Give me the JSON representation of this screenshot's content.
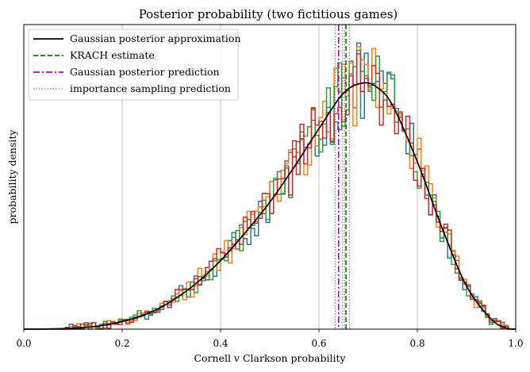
{
  "chart_data": {
    "type": "line",
    "title": "Posterior probability (two fictitious games)",
    "xlabel": "Cornell v Clarkson probability",
    "ylabel": "probability density",
    "xlim": [
      0.0,
      1.0
    ],
    "xticks": [
      "0.0",
      "0.2",
      "0.4",
      "0.6",
      "0.8",
      "1.0"
    ],
    "grid": "vertical",
    "legend_position": "top-left",
    "legend": [
      {
        "label": "Gaussian posterior approximation",
        "style": "solid",
        "color": "#000000"
      },
      {
        "label": "KRACH estimate",
        "style": "dashed",
        "color": "#008000"
      },
      {
        "label": "Gaussian posterior prediction",
        "style": "dashdot",
        "color": "#bf00bf"
      },
      {
        "label": "importance sampling prediction",
        "style": "dotted",
        "color": "#808080"
      }
    ],
    "gaussian_posterior_curve": {
      "x": [
        0.0,
        0.05,
        0.1,
        0.15,
        0.2,
        0.25,
        0.3,
        0.35,
        0.4,
        0.45,
        0.5,
        0.55,
        0.6,
        0.65,
        0.69,
        0.72,
        0.75,
        0.8,
        0.85,
        0.9,
        0.95,
        0.98,
        1.0
      ],
      "y": [
        0.0,
        0.001,
        0.004,
        0.012,
        0.03,
        0.06,
        0.11,
        0.18,
        0.27,
        0.38,
        0.5,
        0.64,
        0.79,
        0.93,
        0.97,
        0.95,
        0.88,
        0.66,
        0.4,
        0.17,
        0.04,
        0.005,
        0.0
      ]
    },
    "vertical_lines": {
      "krach_estimate": 0.655,
      "gaussian_posterior_prediction": 0.64,
      "importance_sampling_prediction": [
        0.633,
        0.648,
        0.652,
        0.662
      ]
    },
    "histogram_series": [
      {
        "color": "#1f77b4"
      },
      {
        "color": "#ff7f0e"
      },
      {
        "color": "#2ca02c"
      },
      {
        "color": "#d62728"
      }
    ]
  }
}
